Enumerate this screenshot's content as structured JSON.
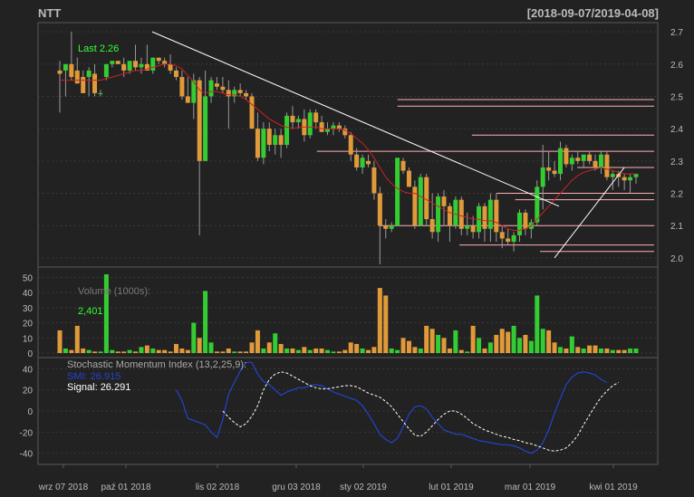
{
  "header": {
    "symbol": "NTT",
    "range": "[2018-09-07/2019-04-08]"
  },
  "colors": {
    "background": "#222222",
    "panel_border": "#5a5a5a",
    "grid": "#3a3a3a",
    "up": "#33cc33",
    "down": "#e09a3a",
    "text": "#bbbbbb",
    "last_label": "#33ff33",
    "trendline": "#ffffff",
    "level_lines": "#ffb0b8",
    "ma_line": "#cc2222",
    "smi_line": "#2244cc",
    "signal_line": "#ffffff"
  },
  "price_panel": {
    "last_label": "Last 2.26",
    "y_ticks": [
      "2.7",
      "2.6",
      "2.5",
      "2.4",
      "2.3",
      "2.2",
      "2.1",
      "2.0"
    ]
  },
  "volume_panel": {
    "title": "Volume (1000s):",
    "value": "2,401",
    "y_ticks": [
      "50",
      "40",
      "30",
      "20",
      "10",
      "0"
    ]
  },
  "smi_panel": {
    "title": "Stochastic Momentum Index (13,2,25,9):",
    "smi_label": "SMI: 26.915",
    "signal_label": "Signal: 26.291",
    "y_ticks": [
      "40",
      "20",
      "0",
      "-20",
      "-40"
    ]
  },
  "x_axis": {
    "labels": [
      "wrz 07 2018",
      "paź 01 2018",
      "lis 02 2018",
      "gru 03 2018",
      "sty 02 2019",
      "lut 01 2019",
      "mar 01 2019",
      "kwi 01 2019"
    ]
  },
  "chart_data": {
    "type": "candlestick",
    "title": "NTT",
    "date_range": "2018-09-07/2019-04-08",
    "price_range": [
      1.98,
      2.72
    ],
    "volume_range": [
      0,
      55
    ],
    "smi_range": [
      -48,
      48
    ],
    "ohlc": [
      {
        "o": 2.58,
        "h": 2.61,
        "l": 2.45,
        "c": 2.57
      },
      {
        "o": 2.58,
        "h": 2.6,
        "l": 2.5,
        "c": 2.6
      },
      {
        "o": 2.6,
        "h": 2.7,
        "l": 2.55,
        "c": 2.56
      },
      {
        "o": 2.58,
        "h": 2.62,
        "l": 2.54,
        "c": 2.54
      },
      {
        "o": 2.56,
        "h": 2.58,
        "l": 2.51,
        "c": 2.51
      },
      {
        "o": 2.56,
        "h": 2.59,
        "l": 2.5,
        "c": 2.58
      },
      {
        "o": 2.57,
        "h": 2.6,
        "l": 2.5,
        "c": 2.51
      },
      {
        "o": 2.51,
        "h": 2.52,
        "l": 2.5,
        "c": 2.51
      },
      {
        "o": 2.56,
        "h": 2.6,
        "l": 2.55,
        "c": 2.6
      },
      {
        "o": 2.6,
        "h": 2.61,
        "l": 2.59,
        "c": 2.61
      },
      {
        "o": 2.61,
        "h": 2.61,
        "l": 2.6,
        "c": 2.6
      },
      {
        "o": 2.6,
        "h": 2.62,
        "l": 2.56,
        "c": 2.58
      },
      {
        "o": 2.58,
        "h": 2.61,
        "l": 2.57,
        "c": 2.61
      },
      {
        "o": 2.61,
        "h": 2.66,
        "l": 2.58,
        "c": 2.59
      },
      {
        "o": 2.59,
        "h": 2.62,
        "l": 2.57,
        "c": 2.6
      },
      {
        "o": 2.6,
        "h": 2.66,
        "l": 2.58,
        "c": 2.58
      },
      {
        "o": 2.58,
        "h": 2.62,
        "l": 2.57,
        "c": 2.62
      },
      {
        "o": 2.62,
        "h": 2.62,
        "l": 2.6,
        "c": 2.61
      },
      {
        "o": 2.61,
        "h": 2.62,
        "l": 2.59,
        "c": 2.6
      },
      {
        "o": 2.6,
        "h": 2.63,
        "l": 2.57,
        "c": 2.58
      },
      {
        "o": 2.58,
        "h": 2.59,
        "l": 2.55,
        "c": 2.56
      },
      {
        "o": 2.56,
        "h": 2.58,
        "l": 2.49,
        "c": 2.5
      },
      {
        "o": 2.5,
        "h": 2.56,
        "l": 2.48,
        "c": 2.48
      },
      {
        "o": 2.48,
        "h": 2.57,
        "l": 2.43,
        "c": 2.55
      },
      {
        "o": 2.55,
        "h": 2.56,
        "l": 2.07,
        "c": 2.3
      },
      {
        "o": 2.3,
        "h": 2.58,
        "l": 2.3,
        "c": 2.5
      },
      {
        "o": 2.5,
        "h": 2.56,
        "l": 2.48,
        "c": 2.55
      },
      {
        "o": 2.54,
        "h": 2.56,
        "l": 2.52,
        "c": 2.53
      },
      {
        "o": 2.53,
        "h": 2.56,
        "l": 2.51,
        "c": 2.52
      },
      {
        "o": 2.52,
        "h": 2.55,
        "l": 2.4,
        "c": 2.5
      },
      {
        "o": 2.5,
        "h": 2.53,
        "l": 2.48,
        "c": 2.52
      },
      {
        "o": 2.52,
        "h": 2.54,
        "l": 2.5,
        "c": 2.51
      },
      {
        "o": 2.51,
        "h": 2.52,
        "l": 2.49,
        "c": 2.5
      },
      {
        "o": 2.5,
        "h": 2.51,
        "l": 2.4,
        "c": 2.4
      },
      {
        "o": 2.4,
        "h": 2.45,
        "l": 2.3,
        "c": 2.31
      },
      {
        "o": 2.31,
        "h": 2.42,
        "l": 2.29,
        "c": 2.4
      },
      {
        "o": 2.4,
        "h": 2.42,
        "l": 2.33,
        "c": 2.35
      },
      {
        "o": 2.35,
        "h": 2.4,
        "l": 2.32,
        "c": 2.38
      },
      {
        "o": 2.38,
        "h": 2.4,
        "l": 2.31,
        "c": 2.35
      },
      {
        "o": 2.35,
        "h": 2.45,
        "l": 2.34,
        "c": 2.44
      },
      {
        "o": 2.44,
        "h": 2.47,
        "l": 2.4,
        "c": 2.42
      },
      {
        "o": 2.42,
        "h": 2.44,
        "l": 2.4,
        "c": 2.43
      },
      {
        "o": 2.43,
        "h": 2.46,
        "l": 2.36,
        "c": 2.38
      },
      {
        "o": 2.38,
        "h": 2.46,
        "l": 2.37,
        "c": 2.45
      },
      {
        "o": 2.45,
        "h": 2.46,
        "l": 2.4,
        "c": 2.42
      },
      {
        "o": 2.42,
        "h": 2.44,
        "l": 2.39,
        "c": 2.39
      },
      {
        "o": 2.39,
        "h": 2.42,
        "l": 2.38,
        "c": 2.4
      },
      {
        "o": 2.4,
        "h": 2.42,
        "l": 2.38,
        "c": 2.41
      },
      {
        "o": 2.41,
        "h": 2.42,
        "l": 2.39,
        "c": 2.4
      },
      {
        "o": 2.4,
        "h": 2.41,
        "l": 2.37,
        "c": 2.38
      },
      {
        "o": 2.38,
        "h": 2.39,
        "l": 2.3,
        "c": 2.32
      },
      {
        "o": 2.32,
        "h": 2.34,
        "l": 2.27,
        "c": 2.28
      },
      {
        "o": 2.28,
        "h": 2.32,
        "l": 2.26,
        "c": 2.31
      },
      {
        "o": 2.3,
        "h": 2.32,
        "l": 2.28,
        "c": 2.29
      },
      {
        "o": 2.28,
        "h": 2.3,
        "l": 2.18,
        "c": 2.2
      },
      {
        "o": 2.2,
        "h": 2.22,
        "l": 1.98,
        "c": 2.1
      },
      {
        "o": 2.1,
        "h": 2.12,
        "l": 2.06,
        "c": 2.09
      },
      {
        "o": 2.09,
        "h": 2.11,
        "l": 2.08,
        "c": 2.1
      },
      {
        "o": 2.1,
        "h": 2.31,
        "l": 2.1,
        "c": 2.31
      },
      {
        "o": 2.3,
        "h": 2.31,
        "l": 2.26,
        "c": 2.27
      },
      {
        "o": 2.27,
        "h": 2.28,
        "l": 2.22,
        "c": 2.22
      },
      {
        "o": 2.22,
        "h": 2.24,
        "l": 2.09,
        "c": 2.1
      },
      {
        "o": 2.1,
        "h": 2.26,
        "l": 2.1,
        "c": 2.25
      },
      {
        "o": 2.25,
        "h": 2.26,
        "l": 2.1,
        "c": 2.12
      },
      {
        "o": 2.12,
        "h": 2.2,
        "l": 2.06,
        "c": 2.08
      },
      {
        "o": 2.08,
        "h": 2.2,
        "l": 2.05,
        "c": 2.19
      },
      {
        "o": 2.19,
        "h": 2.21,
        "l": 2.1,
        "c": 2.16
      },
      {
        "o": 2.16,
        "h": 2.17,
        "l": 2.05,
        "c": 2.1
      },
      {
        "o": 2.1,
        "h": 2.19,
        "l": 2.09,
        "c": 2.18
      },
      {
        "o": 2.18,
        "h": 2.19,
        "l": 2.07,
        "c": 2.09
      },
      {
        "o": 2.09,
        "h": 2.14,
        "l": 2.07,
        "c": 2.1
      },
      {
        "o": 2.1,
        "h": 2.13,
        "l": 2.06,
        "c": 2.08
      },
      {
        "o": 2.08,
        "h": 2.17,
        "l": 2.06,
        "c": 2.16
      },
      {
        "o": 2.16,
        "h": 2.17,
        "l": 2.05,
        "c": 2.09
      },
      {
        "o": 2.09,
        "h": 2.2,
        "l": 2.05,
        "c": 2.18
      },
      {
        "o": 2.18,
        "h": 2.2,
        "l": 2.05,
        "c": 2.08
      },
      {
        "o": 2.08,
        "h": 2.1,
        "l": 2.03,
        "c": 2.06
      },
      {
        "o": 2.06,
        "h": 2.09,
        "l": 2.04,
        "c": 2.05
      },
      {
        "o": 2.05,
        "h": 2.08,
        "l": 2.02,
        "c": 2.07
      },
      {
        "o": 2.07,
        "h": 2.15,
        "l": 2.05,
        "c": 2.14
      },
      {
        "o": 2.14,
        "h": 2.15,
        "l": 2.07,
        "c": 2.09
      },
      {
        "o": 2.09,
        "h": 2.12,
        "l": 2.06,
        "c": 2.11
      },
      {
        "o": 2.11,
        "h": 2.24,
        "l": 2.1,
        "c": 2.22
      },
      {
        "o": 2.22,
        "h": 2.35,
        "l": 2.15,
        "c": 2.28
      },
      {
        "o": 2.28,
        "h": 2.33,
        "l": 2.24,
        "c": 2.27
      },
      {
        "o": 2.27,
        "h": 2.3,
        "l": 2.25,
        "c": 2.26
      },
      {
        "o": 2.26,
        "h": 2.36,
        "l": 2.24,
        "c": 2.34
      },
      {
        "o": 2.34,
        "h": 2.35,
        "l": 2.28,
        "c": 2.29
      },
      {
        "o": 2.29,
        "h": 2.32,
        "l": 2.27,
        "c": 2.31
      },
      {
        "o": 2.31,
        "h": 2.33,
        "l": 2.29,
        "c": 2.3
      },
      {
        "o": 2.3,
        "h": 2.32,
        "l": 2.28,
        "c": 2.32
      },
      {
        "o": 2.32,
        "h": 2.33,
        "l": 2.29,
        "c": 2.3
      },
      {
        "o": 2.3,
        "h": 2.32,
        "l": 2.27,
        "c": 2.28
      },
      {
        "o": 2.28,
        "h": 2.33,
        "l": 2.26,
        "c": 2.32
      },
      {
        "o": 2.32,
        "h": 2.33,
        "l": 2.24,
        "c": 2.25
      },
      {
        "o": 2.25,
        "h": 2.27,
        "l": 2.21,
        "c": 2.26
      },
      {
        "o": 2.26,
        "h": 2.27,
        "l": 2.22,
        "c": 2.25
      },
      {
        "o": 2.25,
        "h": 2.26,
        "l": 2.21,
        "c": 2.24
      },
      {
        "o": 2.24,
        "h": 2.26,
        "l": 2.2,
        "c": 2.25
      },
      {
        "o": 2.25,
        "h": 2.26,
        "l": 2.23,
        "c": 2.26
      }
    ],
    "ma": [
      2.55,
      2.55,
      2.55,
      2.55,
      2.55,
      2.55,
      2.55,
      2.55,
      2.555,
      2.56,
      2.565,
      2.57,
      2.575,
      2.58,
      2.58,
      2.585,
      2.59,
      2.595,
      2.6,
      2.6,
      2.595,
      2.585,
      2.565,
      2.545,
      2.52,
      2.51,
      2.515,
      2.515,
      2.51,
      2.505,
      2.505,
      2.5,
      2.49,
      2.475,
      2.46,
      2.445,
      2.43,
      2.42,
      2.41,
      2.405,
      2.4,
      2.405,
      2.405,
      2.405,
      2.405,
      2.4,
      2.4,
      2.4,
      2.4,
      2.395,
      2.385,
      2.37,
      2.355,
      2.335,
      2.31,
      2.28,
      2.25,
      2.23,
      2.215,
      2.205,
      2.2,
      2.2,
      2.19,
      2.18,
      2.17,
      2.16,
      2.15,
      2.14,
      2.135,
      2.13,
      2.125,
      2.12,
      2.12,
      2.115,
      2.115,
      2.11,
      2.1,
      2.09,
      2.085,
      2.085,
      2.09,
      2.1,
      2.12,
      2.14,
      2.16,
      2.18,
      2.2,
      2.22,
      2.24,
      2.255,
      2.265,
      2.27,
      2.275,
      2.28,
      2.275,
      2.27,
      2.265,
      2.26,
      2.26,
      2.26
    ],
    "volume": [
      15,
      3,
      2,
      18,
      3,
      2,
      1,
      1,
      52,
      2,
      1,
      1,
      2,
      1,
      4,
      5,
      3,
      2,
      2,
      1,
      6,
      3,
      2,
      20,
      10,
      41,
      7,
      1,
      1,
      3,
      1,
      1,
      1,
      7,
      15,
      3,
      7,
      13,
      6,
      3,
      3,
      2,
      4,
      2,
      3,
      3,
      2,
      1,
      1,
      2,
      7,
      6,
      3,
      2,
      4,
      43,
      38,
      3,
      2,
      10,
      8,
      4,
      3,
      18,
      16,
      12,
      10,
      3,
      15,
      2,
      1,
      18,
      10,
      3,
      7,
      12,
      16,
      14,
      18,
      10,
      12,
      8,
      38,
      16,
      15,
      7,
      4,
      3,
      11,
      4,
      3,
      5,
      5,
      3,
      3,
      2,
      2,
      2,
      3,
      3
    ],
    "smi": [
      null,
      null,
      null,
      null,
      null,
      null,
      null,
      null,
      null,
      null,
      null,
      null,
      null,
      null,
      null,
      null,
      null,
      null,
      null,
      null,
      20,
      10,
      -7,
      -9,
      -11,
      -13,
      -20,
      -25,
      -8,
      16,
      27,
      38,
      46,
      46,
      35,
      28,
      25,
      20,
      15,
      18,
      20,
      22,
      22,
      24,
      25,
      24,
      21,
      18,
      16,
      14,
      12,
      10,
      5,
      -3,
      -12,
      -22,
      -27,
      -30,
      -26,
      -15,
      -3,
      4,
      5,
      2,
      -6,
      -12,
      -18,
      -20,
      -22,
      -22,
      -24,
      -26,
      -28,
      -29,
      -30,
      -31,
      -32,
      -32,
      -33,
      -35,
      -38,
      -40,
      -37,
      -30,
      -18,
      -2,
      12,
      25,
      32,
      36,
      37,
      36,
      34,
      30,
      27
    ],
    "signal": [
      null,
      null,
      null,
      null,
      null,
      null,
      null,
      null,
      null,
      null,
      null,
      null,
      null,
      null,
      null,
      null,
      null,
      null,
      null,
      null,
      null,
      null,
      null,
      null,
      null,
      null,
      null,
      null,
      null,
      null,
      null,
      null,
      null,
      null,
      null,
      null,
      null,
      null,
      null,
      null,
      null,
      null,
      null,
      null,
      null,
      null,
      null,
      null,
      null,
      null,
      null,
      null,
      null,
      null,
      null,
      null,
      null,
      null,
      null,
      null,
      null,
      null,
      null,
      null,
      null,
      null,
      null,
      null,
      null,
      null,
      null,
      null,
      null,
      null,
      null,
      null,
      null,
      null,
      null,
      null,
      null,
      null,
      null,
      null,
      null,
      null,
      null,
      null,
      null,
      null,
      null,
      null,
      null,
      null,
      null,
      null,
      null,
      null,
      null,
      null
    ],
    "signal_series": [
      [
        17,
        0
      ],
      [
        18,
        -6
      ],
      [
        19,
        -11
      ],
      [
        20,
        -15
      ],
      [
        21,
        -12
      ],
      [
        22,
        -5
      ],
      [
        23,
        5
      ],
      [
        24,
        20
      ],
      [
        25,
        30
      ],
      [
        26,
        35
      ],
      [
        27,
        37
      ],
      [
        28,
        36
      ],
      [
        29,
        33
      ],
      [
        30,
        30
      ],
      [
        31,
        27
      ],
      [
        32,
        24
      ],
      [
        33,
        22
      ],
      [
        34,
        21
      ],
      [
        35,
        21
      ],
      [
        36,
        22
      ],
      [
        37,
        23
      ],
      [
        38,
        24
      ],
      [
        39,
        24
      ],
      [
        40,
        23
      ],
      [
        41,
        20
      ],
      [
        42,
        17
      ],
      [
        43,
        15
      ],
      [
        44,
        13
      ],
      [
        45,
        9
      ],
      [
        46,
        4
      ],
      [
        47,
        -3
      ],
      [
        48,
        -10
      ],
      [
        49,
        -17
      ],
      [
        50,
        -23
      ],
      [
        51,
        -24
      ],
      [
        52,
        -20
      ],
      [
        53,
        -14
      ],
      [
        54,
        -8
      ],
      [
        55,
        -3
      ],
      [
        56,
        0
      ],
      [
        57,
        0
      ],
      [
        58,
        -3
      ],
      [
        59,
        -7
      ],
      [
        60,
        -12
      ],
      [
        61,
        -15
      ],
      [
        62,
        -18
      ],
      [
        63,
        -20
      ],
      [
        64,
        -22
      ],
      [
        65,
        -24
      ],
      [
        66,
        -25
      ],
      [
        67,
        -27
      ],
      [
        68,
        -28
      ],
      [
        69,
        -30
      ],
      [
        70,
        -31
      ],
      [
        71,
        -33
      ],
      [
        72,
        -35
      ],
      [
        73,
        -37
      ],
      [
        74,
        -38
      ],
      [
        75,
        -37
      ],
      [
        76,
        -35
      ],
      [
        77,
        -30
      ],
      [
        78,
        -23
      ],
      [
        79,
        -13
      ],
      [
        80,
        -4
      ],
      [
        81,
        5
      ],
      [
        82,
        13
      ],
      [
        83,
        19
      ],
      [
        84,
        24
      ],
      [
        85,
        27
      ]
    ],
    "trendline_down": [
      [
        35,
        2.7
      ],
      [
        210,
        2.16
      ]
    ],
    "trendline_up": [
      [
        85,
        2.0
      ],
      [
        97,
        2.28
      ]
    ],
    "levels": [
      {
        "y": 2.49,
        "from": 0.58,
        "to": 1.0
      },
      {
        "y": 2.47,
        "from": 0.58,
        "to": 1.0
      },
      {
        "y": 2.38,
        "from": 0.7,
        "to": 1.0
      },
      {
        "y": 2.33,
        "from": 0.45,
        "to": 1.0
      },
      {
        "y": 2.28,
        "from": 0.87,
        "to": 1.0
      },
      {
        "y": 2.2,
        "from": 0.74,
        "to": 1.0
      },
      {
        "y": 2.18,
        "from": 0.77,
        "to": 1.0
      },
      {
        "y": 2.1,
        "from": 0.55,
        "to": 1.0
      },
      {
        "y": 2.04,
        "from": 0.68,
        "to": 1.0
      },
      {
        "y": 2.02,
        "from": 0.81,
        "to": 1.0
      }
    ]
  }
}
